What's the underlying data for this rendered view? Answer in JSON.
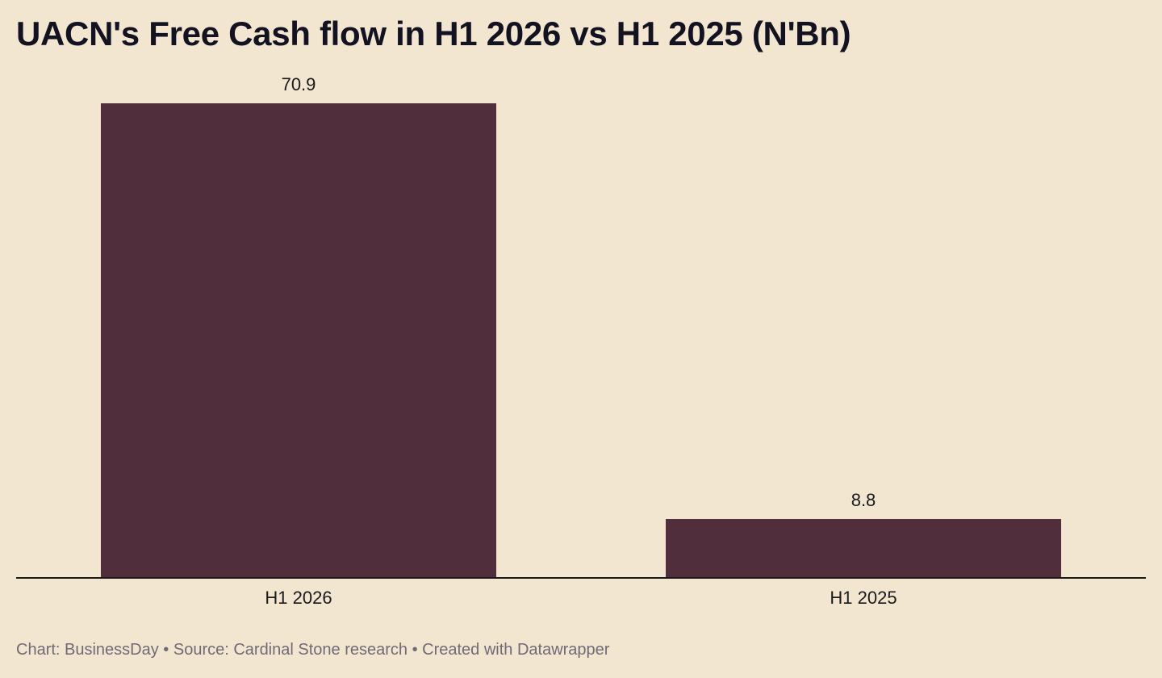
{
  "chart_data": {
    "type": "bar",
    "title": "UACN's Free Cash flow in H1 2026 vs H1 2025 (N'Bn)",
    "categories": [
      "H1 2026",
      "H1 2025"
    ],
    "values": [
      70.9,
      8.8
    ],
    "value_labels": [
      "70.9",
      "8.8"
    ],
    "xlabel": "",
    "ylabel": "",
    "ylim": [
      0,
      70.9
    ],
    "grid": false,
    "legend": "none",
    "bar_color": "#512e3b",
    "axis_color": "#1a1a1a"
  },
  "footer": {
    "credit": "Chart: BusinessDay • Source: Cardinal Stone research • Created with Datawrapper"
  },
  "colors": {
    "background": "#f2e6d0",
    "title": "#121220",
    "footer": "#716a76"
  }
}
